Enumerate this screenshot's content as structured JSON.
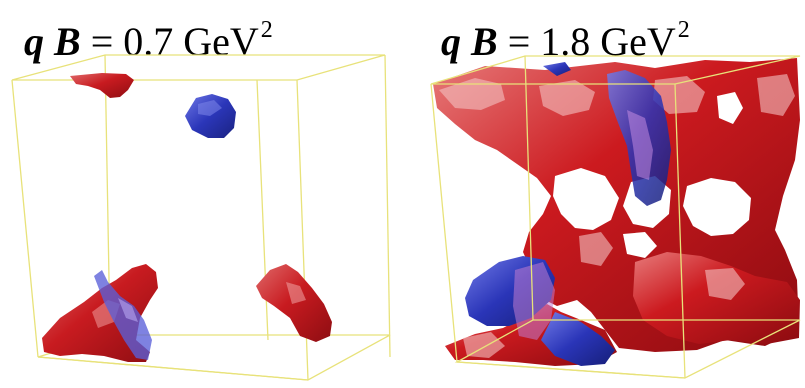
{
  "panels": [
    {
      "title": {
        "q": "q",
        "B": "B",
        "equals": " = ",
        "value": "0.7",
        "unit": "GeV",
        "exponent": "2"
      }
    },
    {
      "title": {
        "q": "q",
        "B": "B",
        "equals": " = ",
        "value": "1.8",
        "unit": "GeV",
        "exponent": "2"
      }
    }
  ],
  "colors": {
    "positive_blob": "#cc1a1f",
    "negative_blob": "#2a35b8",
    "box_edge": "#e8e27a",
    "background": "#ffffff"
  }
}
